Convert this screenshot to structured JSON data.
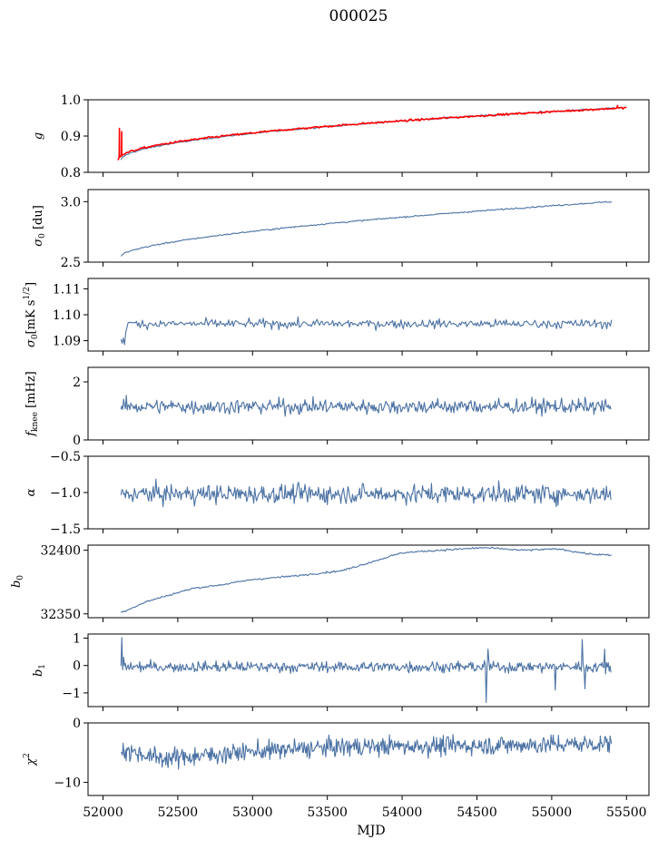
{
  "figure": {
    "title": "000025"
  },
  "chart_data": [
    {
      "id": "g",
      "type": "line",
      "ylabel_main": "g",
      "ylim": [
        0.8,
        1.0
      ],
      "yticks": [
        0.8,
        0.9,
        1.0
      ],
      "ytick_labels": [
        "0.8",
        "0.9",
        "1.0"
      ],
      "series": [
        {
          "color": "#4c72a4",
          "shape": "drift",
          "start": [
            52120,
            0.833
          ],
          "end": [
            55420,
            0.977
          ],
          "curvature": 0.5,
          "noise": 0.0015,
          "step": 10
        },
        {
          "color": "#ff0000",
          "shape": "drift_spiky",
          "start": [
            52100,
            0.835
          ],
          "end": [
            55500,
            0.978
          ],
          "curvature": 0.5,
          "noise": 0.0018,
          "step": 8,
          "spikes": [
            [
              52110,
              0.921
            ],
            [
              52125,
              0.912
            ],
            [
              55440,
              0.984
            ]
          ]
        }
      ]
    },
    {
      "id": "sigma0_du",
      "type": "line",
      "ylabel_main": "σ",
      "ylabel_sub": "0",
      "ylabel_rest": " [du]",
      "ylim": [
        2.5,
        3.1
      ],
      "yticks": [
        2.5,
        3.0
      ],
      "ytick_labels": [
        "2.5",
        "3.0"
      ],
      "series": [
        {
          "color": "#4c72a4",
          "shape": "drift",
          "start": [
            52120,
            2.55
          ],
          "end": [
            55400,
            3.0
          ],
          "curvature": 0.6,
          "noise": 0.004,
          "step": 8
        }
      ]
    },
    {
      "id": "sigma0_mk",
      "type": "line",
      "ylabel_main": "σ",
      "ylabel_sub": "0",
      "ylabel_rest": "[mK s",
      "ylabel_sup": "1/2",
      "ylabel_end": "]",
      "ylim": [
        1.086,
        1.114
      ],
      "yticks": [
        1.09,
        1.1,
        1.11
      ],
      "ytick_labels": [
        "1.09",
        "1.10",
        "1.11"
      ],
      "series": [
        {
          "color": "#4c72a4",
          "shape": "noise",
          "start": [
            52120,
            1.09
          ],
          "end": [
            55400,
            1.098
          ],
          "mean": 1.0965,
          "noise": 0.0012,
          "step": 8,
          "first_points": [
            1.0905,
            1.089,
            1.091,
            1.0885,
            1.093,
            1.095,
            1.097
          ]
        }
      ]
    },
    {
      "id": "fknee",
      "type": "line",
      "ylabel_main": "f",
      "ylabel_sub": "knee",
      "ylabel_rest": " [mHz]",
      "ylim": [
        0,
        2.5
      ],
      "yticks": [
        0,
        2
      ],
      "ytick_labels": [
        "0",
        "2"
      ],
      "series": [
        {
          "color": "#4c72a4",
          "shape": "noise",
          "start": [
            52120,
            1.0
          ],
          "end": [
            55400,
            1.05
          ],
          "mean": 1.15,
          "noise": 0.18,
          "step": 6
        }
      ]
    },
    {
      "id": "alpha",
      "type": "line",
      "ylabel_main": "α",
      "ylim": [
        -1.5,
        -0.5
      ],
      "yticks": [
        -1.5,
        -1.0,
        -0.5
      ],
      "ytick_labels": [
        "−1.5",
        "−1.0",
        "−0.5"
      ],
      "series": [
        {
          "color": "#4c72a4",
          "shape": "noise",
          "start": [
            52120,
            -1.18
          ],
          "end": [
            55400,
            -1.1
          ],
          "mean": -1.02,
          "noise": 0.09,
          "step": 6
        }
      ]
    },
    {
      "id": "b0",
      "type": "line",
      "ylabel_main": "b",
      "ylabel_sub": "0",
      "ylim": [
        32347,
        32404
      ],
      "yticks": [
        32350,
        32400
      ],
      "ytick_labels": [
        "32350",
        "32400"
      ],
      "series": [
        {
          "color": "#4c72a4",
          "shape": "path",
          "noise": 0.5,
          "step": 8,
          "knots": [
            [
              52120,
              32351
            ],
            [
              52300,
              32360
            ],
            [
              52600,
              32370
            ],
            [
              52800,
              32373
            ],
            [
              53000,
              32377
            ],
            [
              53300,
              32380
            ],
            [
              53600,
              32384
            ],
            [
              53800,
              32391
            ],
            [
              54000,
              32398
            ],
            [
              54250,
              32400
            ],
            [
              54550,
              32402
            ],
            [
              54800,
              32400
            ],
            [
              55050,
              32401
            ],
            [
              55250,
              32397
            ],
            [
              55400,
              32396
            ]
          ]
        }
      ]
    },
    {
      "id": "b1",
      "type": "line",
      "ylabel_main": "b",
      "ylabel_sub": "1",
      "ylim": [
        -1.5,
        1.15
      ],
      "yticks": [
        -1,
        0,
        1
      ],
      "ytick_labels": [
        "−1",
        "0",
        "1"
      ],
      "series": [
        {
          "color": "#4c72a4",
          "shape": "noise",
          "start": [
            52120,
            1.0
          ],
          "end": [
            55400,
            -0.25
          ],
          "mean": -0.05,
          "noise": 0.14,
          "step": 6,
          "spikes": [
            [
              52122,
              1.02
            ],
            [
              52135,
              0.3
            ],
            [
              54560,
              -1.35
            ],
            [
              54570,
              0.6
            ],
            [
              55020,
              -0.9
            ],
            [
              55200,
              0.95
            ],
            [
              55220,
              -0.85
            ],
            [
              55350,
              0.6
            ]
          ]
        }
      ]
    },
    {
      "id": "chi2",
      "type": "line",
      "ylabel_main": "χ",
      "ylabel_sup": "2",
      "ylim": [
        -12.2,
        0
      ],
      "yticks": [
        -10,
        0
      ],
      "ytick_labels": [
        "−10",
        "0"
      ],
      "series": [
        {
          "color": "#4c72a4",
          "shape": "noise",
          "start": [
            52120,
            -3.0
          ],
          "end": [
            55400,
            -3.5
          ],
          "mean": -4.4,
          "noise": 1.1,
          "step": 5,
          "trend": [
            [
              52120,
              -4.5
            ],
            [
              52400,
              -6.0
            ],
            [
              53000,
              -4.8
            ],
            [
              53600,
              -4.0
            ],
            [
              54500,
              -3.8
            ],
            [
              55400,
              -3.5
            ]
          ]
        }
      ]
    }
  ],
  "x_axis": {
    "xlim": [
      51900,
      55650
    ],
    "ticks": [
      52000,
      52500,
      53000,
      53500,
      54000,
      54500,
      55000,
      55500
    ],
    "tick_labels": [
      "52000",
      "52500",
      "53000",
      "53500",
      "54000",
      "54500",
      "55000",
      "55500"
    ],
    "label": "MJD"
  }
}
